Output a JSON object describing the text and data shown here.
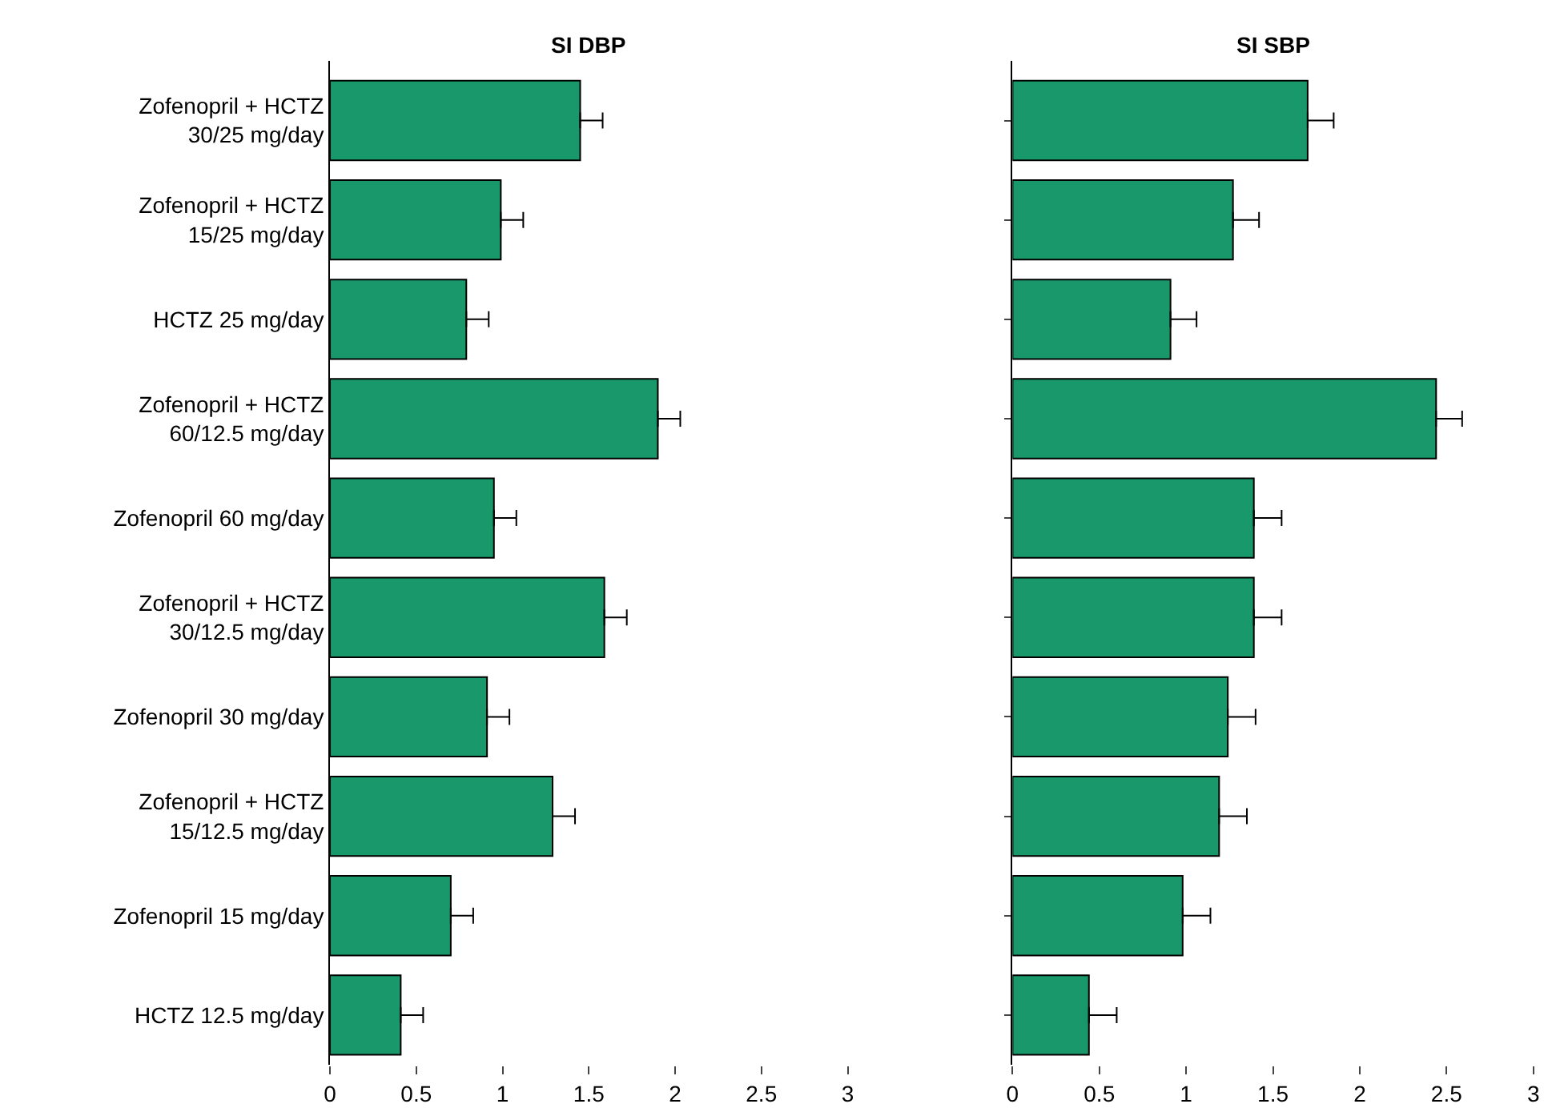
{
  "chart_data": [
    {
      "type": "bar",
      "orientation": "horizontal",
      "title": "SI DBP",
      "categories": [
        "Zofenopril + HCTZ\n30/25 mg/day",
        "Zofenopril + HCTZ\n15/25 mg/day",
        "HCTZ 25 mg/day",
        "Zofenopril + HCTZ\n60/12.5 mg/day",
        "Zofenopril 60 mg/day",
        "Zofenopril + HCTZ\n30/12.5 mg/day",
        "Zofenopril 30 mg/day",
        "Zofenopril + HCTZ\n15/12.5 mg/day",
        "Zofenopril 15 mg/day",
        "HCTZ 12.5 mg/day"
      ],
      "series": [
        {
          "color": "#18986b",
          "values": [
            1.45,
            0.99,
            0.79,
            1.9,
            0.95,
            1.59,
            0.91,
            1.29,
            0.7,
            0.41
          ],
          "errors": [
            [
              1.45,
              1.58
            ],
            [
              0.99,
              1.12
            ],
            [
              0.79,
              0.92
            ],
            [
              1.9,
              2.03
            ],
            [
              0.95,
              1.08
            ],
            [
              1.59,
              1.72
            ],
            [
              0.91,
              1.04
            ],
            [
              1.29,
              1.42
            ],
            [
              0.7,
              0.83
            ],
            [
              0.41,
              0.54
            ]
          ]
        }
      ],
      "xlim": [
        0,
        3
      ],
      "xticks": [
        0,
        0.5,
        1,
        1.5,
        2,
        2.5,
        3
      ]
    },
    {
      "type": "bar",
      "orientation": "horizontal",
      "title": "SI SBP",
      "categories": [
        null,
        null,
        null,
        null,
        null,
        null,
        null,
        null,
        null,
        null
      ],
      "series": [
        {
          "color": "#18986b",
          "values": [
            1.7,
            1.27,
            0.91,
            2.44,
            1.39,
            1.39,
            1.24,
            1.19,
            0.98,
            0.44
          ],
          "errors": [
            [
              1.7,
              1.85
            ],
            [
              1.27,
              1.42
            ],
            [
              0.91,
              1.06
            ],
            [
              2.44,
              2.59
            ],
            [
              1.39,
              1.55
            ],
            [
              1.39,
              1.55
            ],
            [
              1.24,
              1.4
            ],
            [
              1.19,
              1.35
            ],
            [
              0.98,
              1.14
            ],
            [
              0.44,
              0.6
            ]
          ]
        }
      ],
      "xlim": [
        0,
        3
      ],
      "xticks": [
        0,
        0.5,
        1,
        1.5,
        2,
        2.5,
        3
      ]
    }
  ]
}
